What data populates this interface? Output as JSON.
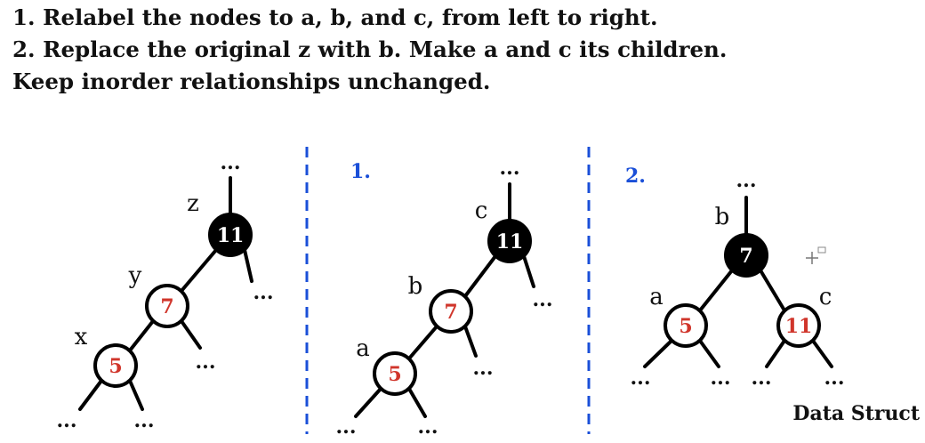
{
  "instructions": {
    "line1": "1. Relabel the nodes to a, b, and c, from left to right.",
    "line2": "2. Replace the original z with b. Make a and c its children.",
    "line3": "Keep inorder relationships unchanged."
  },
  "colors": {
    "red": "#d0352b",
    "black": "#000000",
    "blue": "#1a4fd8"
  },
  "ellipsis": "...",
  "watermark": "Data Struct",
  "panels": [
    {
      "id": "original",
      "step": "",
      "nodes": [
        {
          "id": "z",
          "label": "z",
          "key": "11",
          "color": "black"
        },
        {
          "id": "y",
          "label": "y",
          "key": "7",
          "color": "red"
        },
        {
          "id": "x",
          "label": "x",
          "key": "5",
          "color": "red"
        }
      ]
    },
    {
      "id": "relabeled",
      "step": "1.",
      "nodes": [
        {
          "id": "c",
          "label": "c",
          "key": "11",
          "color": "black"
        },
        {
          "id": "b",
          "label": "b",
          "key": "7",
          "color": "red"
        },
        {
          "id": "a",
          "label": "a",
          "key": "5",
          "color": "red"
        }
      ]
    },
    {
      "id": "restructured",
      "step": "2.",
      "nodes": [
        {
          "id": "b",
          "label": "b",
          "key": "7",
          "color": "black"
        },
        {
          "id": "a",
          "label": "a",
          "key": "5",
          "color": "red"
        },
        {
          "id": "c",
          "label": "c",
          "key": "11",
          "color": "red"
        }
      ]
    }
  ]
}
